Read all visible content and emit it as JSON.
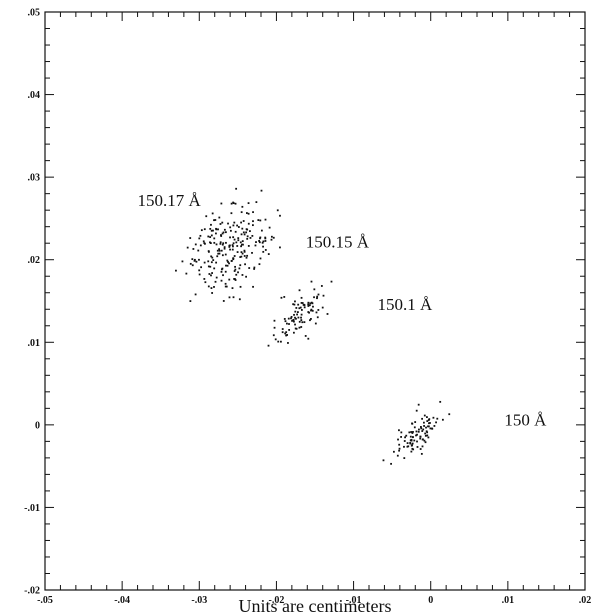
{
  "chart_data": {
    "type": "scatter",
    "title": "",
    "xlabel": "Units are centimeters",
    "ylabel": "",
    "xlim": [
      -0.05,
      0.02
    ],
    "ylim": [
      -0.02,
      0.05
    ],
    "x_major_ticks": [
      -0.05,
      -0.04,
      -0.03,
      -0.02,
      -0.01,
      0,
      0.01,
      0.02
    ],
    "x_tick_labels": [
      "-.05",
      "-.04",
      "-.03",
      "-.02",
      "-.01",
      "0",
      ".01",
      ".02"
    ],
    "y_major_ticks": [
      -0.02,
      -0.01,
      0,
      0.01,
      0.02,
      0.03,
      0.04,
      0.05
    ],
    "y_tick_labels": [
      "-.02",
      "-.01",
      "0",
      ".01",
      ".02",
      ".03",
      ".04",
      ".05"
    ],
    "minor_tick_step": 0.002,
    "grid": false,
    "legend": "none",
    "marker_color": "#111111",
    "clusters": [
      {
        "label": "150.17 Å",
        "center": [
          -0.0275,
          0.0225
        ],
        "sx": 0.0022,
        "sy": 0.0022,
        "rho": 0.45,
        "n": 120
      },
      {
        "label": "150.15 Å",
        "center": [
          -0.0245,
          0.0205
        ],
        "sx": 0.0022,
        "sy": 0.0024,
        "rho": 0.45,
        "n": 120
      },
      {
        "label": "150.1 Å",
        "center": [
          -0.017,
          0.0133
        ],
        "sx": 0.0016,
        "sy": 0.0016,
        "rho": 0.6,
        "n": 95
      },
      {
        "label": "150 Å",
        "center": [
          -0.0015,
          -0.001
        ],
        "sx": 0.0016,
        "sy": 0.0015,
        "rho": 0.6,
        "n": 95
      }
    ],
    "annotations": [
      {
        "text": "150.17 Å",
        "x": -0.0298,
        "y": 0.0265,
        "ring_x": -0.03,
        "ring_y": 0.0277
      },
      {
        "text": "150.15 Å",
        "x": -0.008,
        "y": 0.0215,
        "ring_x": -0.0083,
        "ring_y": 0.0237
      },
      {
        "text": "150.1 Å",
        "x": 0.0002,
        "y": 0.0139,
        "ring_x": -0.0007,
        "ring_y": 0.0161
      },
      {
        "text": "150 Å",
        "x": 0.015,
        "y": -0.0001,
        "ring_x": 0.013,
        "ring_y": 0.0021
      }
    ]
  }
}
